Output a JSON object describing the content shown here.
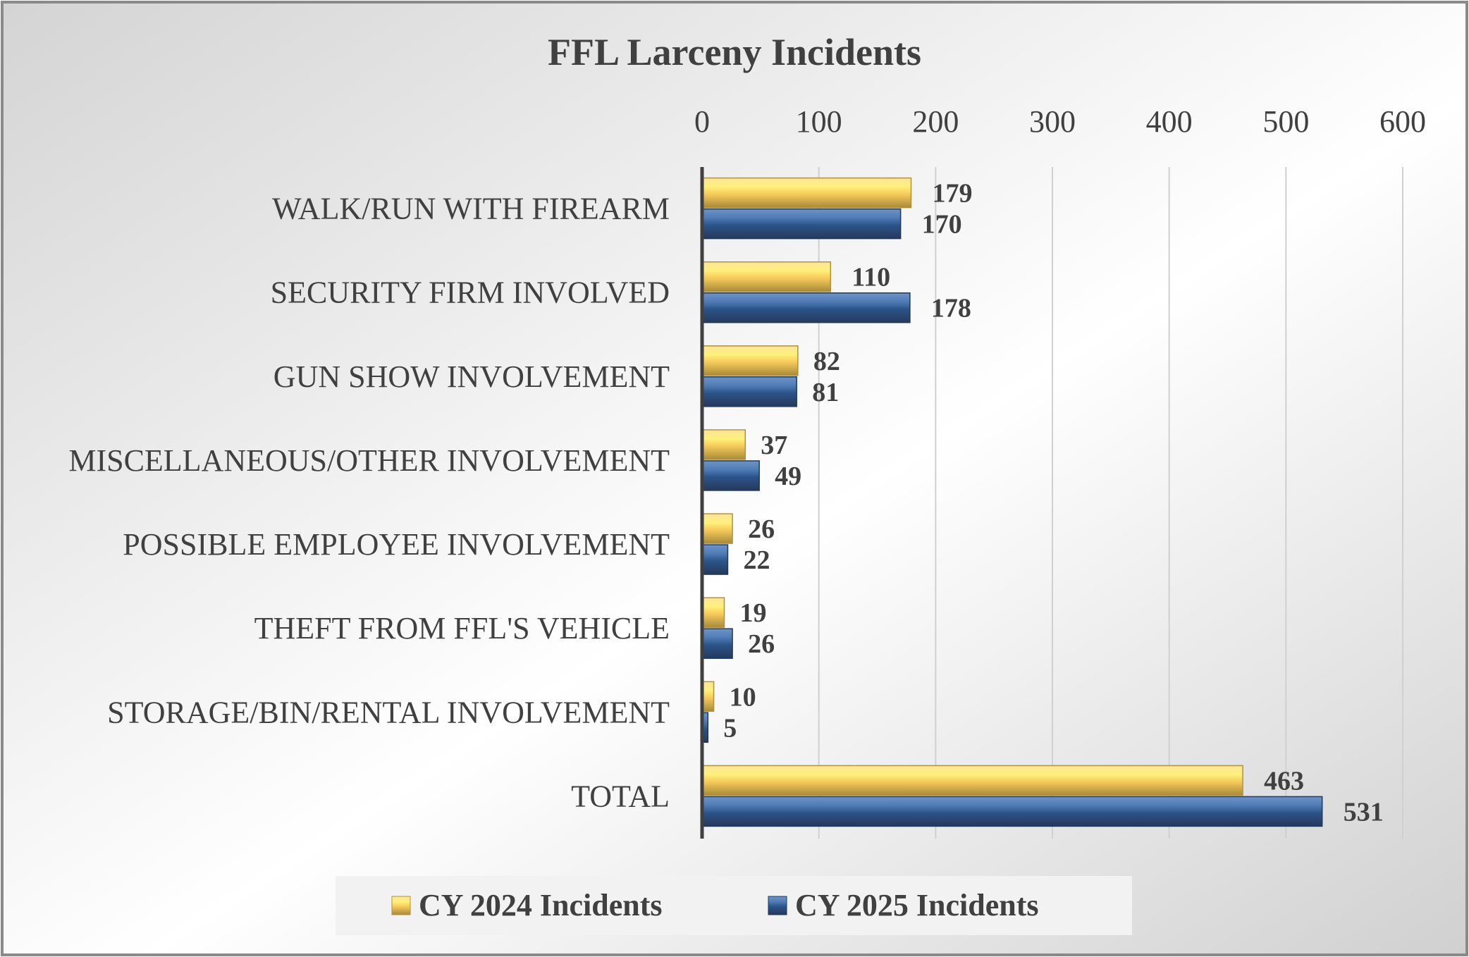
{
  "chart_data": {
    "type": "bar",
    "orientation": "horizontal",
    "title": "FFL Larceny Incidents",
    "categories": [
      "WALK/RUN WITH FIREARM",
      "SECURITY FIRM INVOLVED",
      "GUN SHOW INVOLVEMENT",
      "MISCELLANEOUS/OTHER INVOLVEMENT",
      "POSSIBLE EMPLOYEE INVOLVEMENT",
      "THEFT FROM FFL'S VEHICLE",
      "STORAGE/BIN/RENTAL INVOLVEMENT",
      "TOTAL"
    ],
    "series": [
      {
        "name": "CY 2024 Incidents",
        "color": "#F2C14E",
        "values": [
          179,
          110,
          82,
          37,
          26,
          19,
          10,
          463
        ]
      },
      {
        "name": "CY 2025 Incidents",
        "color": "#2E5A8C",
        "values": [
          170,
          178,
          81,
          49,
          22,
          26,
          5,
          531
        ]
      }
    ],
    "xlim": [
      0,
      600
    ],
    "xticks": [
      "0",
      "100",
      "200",
      "300",
      "400",
      "500",
      "600"
    ],
    "x_axis_position": "top",
    "grid": true,
    "legend": "bottom",
    "data_labels": true
  }
}
